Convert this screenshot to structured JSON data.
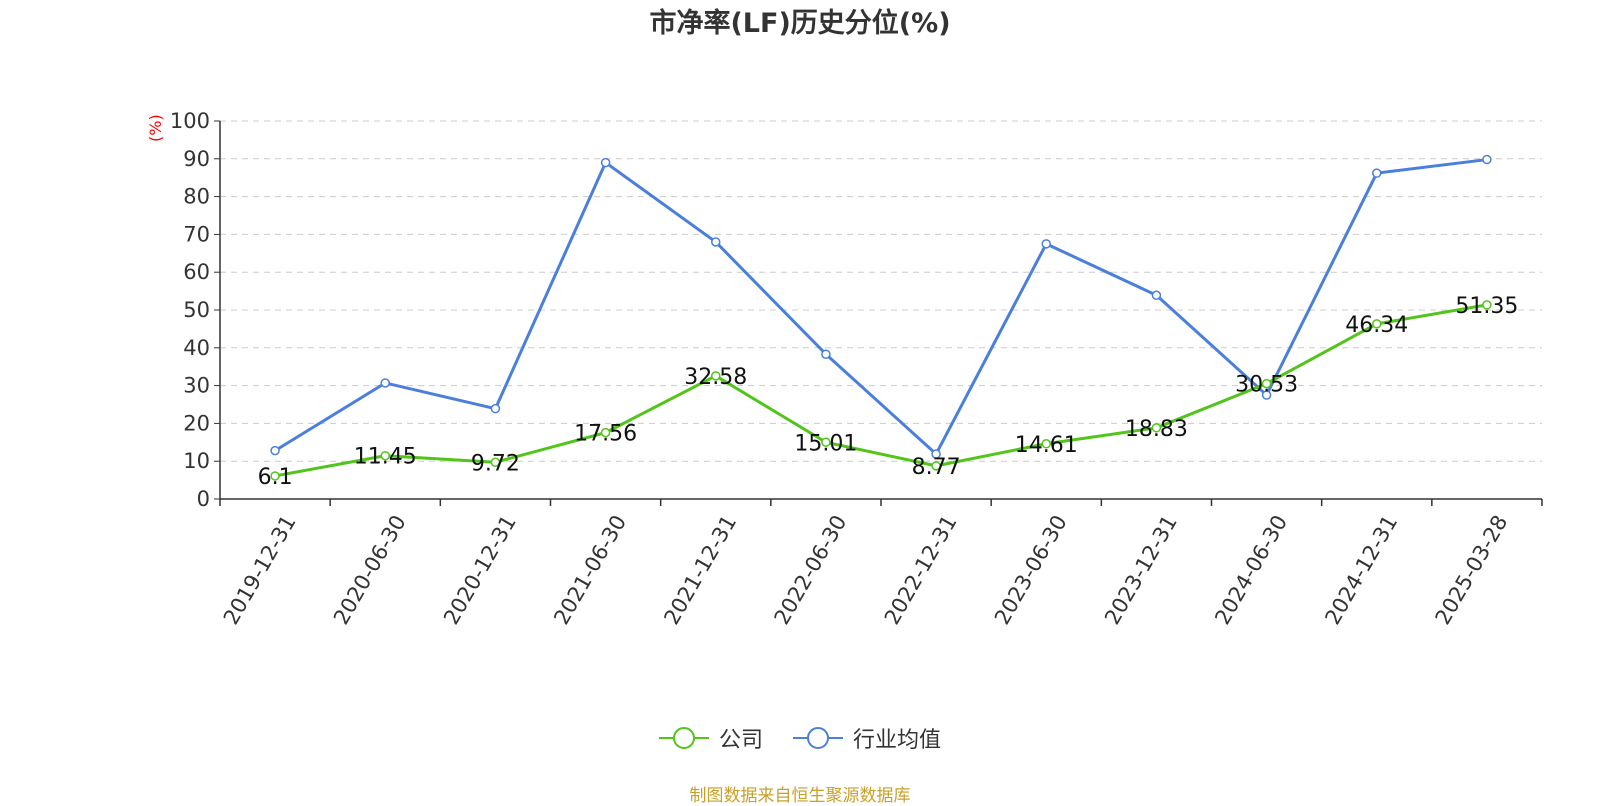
{
  "chart_data": {
    "type": "line",
    "title": "市净率(LF)历史分位(%)",
    "ylabel": "(%)",
    "ylim": [
      0,
      100
    ],
    "yticks": [
      0,
      10,
      20,
      30,
      40,
      50,
      60,
      70,
      80,
      90,
      100
    ],
    "grid": true,
    "legend_position": "bottom",
    "categories": [
      "2019-12-31",
      "2020-06-30",
      "2020-12-31",
      "2021-06-30",
      "2021-12-31",
      "2022-06-30",
      "2022-12-31",
      "2023-06-30",
      "2023-12-31",
      "2024-06-30",
      "2024-12-31",
      "2025-03-28"
    ],
    "series": [
      {
        "name": "公司",
        "color": "#52c41a",
        "labels": true,
        "values": [
          6.1,
          11.45,
          9.72,
          17.56,
          32.58,
          15.01,
          8.77,
          14.61,
          18.83,
          30.53,
          46.34,
          51.35
        ]
      },
      {
        "name": "行业均值",
        "color": "#4a7fdc",
        "labels": false,
        "values": [
          12.8,
          30.7,
          23.9,
          89.0,
          68.0,
          38.3,
          11.9,
          67.5,
          53.9,
          27.5,
          86.2,
          89.8
        ]
      }
    ]
  },
  "source": "制图数据来自恒生聚源数据库"
}
